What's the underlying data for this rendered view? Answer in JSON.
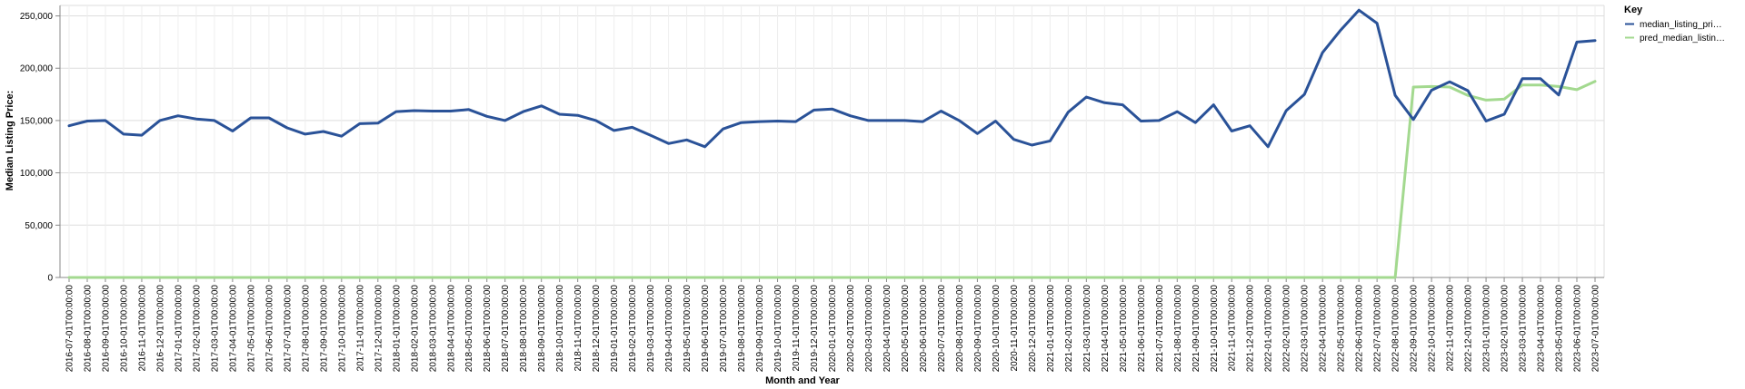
{
  "chart_data": {
    "type": "line",
    "xlabel": "Month and Year",
    "ylabel": "Median Listing Price:",
    "ylim": [
      0,
      260000
    ],
    "y_ticks": [
      0,
      50000,
      100000,
      150000,
      200000,
      250000
    ],
    "y_tick_labels": [
      "0",
      "50,000",
      "100,000",
      "150,000",
      "200,000",
      "250,000"
    ],
    "grid": true,
    "legend": {
      "title": "Key",
      "position": "top-right",
      "entries": [
        {
          "label": "median_listing_pri…",
          "color": "#2a5298"
        },
        {
          "label": "pred_median_listin…",
          "color": "#a3d98f"
        }
      ]
    },
    "categories": [
      "2016-07-01T00:00:00",
      "2016-08-01T00:00:00",
      "2016-09-01T00:00:00",
      "2016-10-01T00:00:00",
      "2016-11-01T00:00:00",
      "2016-12-01T00:00:00",
      "2017-01-01T00:00:00",
      "2017-02-01T00:00:00",
      "2017-03-01T00:00:00",
      "2017-04-01T00:00:00",
      "2017-05-01T00:00:00",
      "2017-06-01T00:00:00",
      "2017-07-01T00:00:00",
      "2017-08-01T00:00:00",
      "2017-09-01T00:00:00",
      "2017-10-01T00:00:00",
      "2017-11-01T00:00:00",
      "2017-12-01T00:00:00",
      "2018-01-01T00:00:00",
      "2018-02-01T00:00:00",
      "2018-03-01T00:00:00",
      "2018-04-01T00:00:00",
      "2018-05-01T00:00:00",
      "2018-06-01T00:00:00",
      "2018-07-01T00:00:00",
      "2018-08-01T00:00:00",
      "2018-09-01T00:00:00",
      "2018-10-01T00:00:00",
      "2018-11-01T00:00:00",
      "2018-12-01T00:00:00",
      "2019-01-01T00:00:00",
      "2019-02-01T00:00:00",
      "2019-03-01T00:00:00",
      "2019-04-01T00:00:00",
      "2019-05-01T00:00:00",
      "2019-06-01T00:00:00",
      "2019-07-01T00:00:00",
      "2019-08-01T00:00:00",
      "2019-09-01T00:00:00",
      "2019-10-01T00:00:00",
      "2019-11-01T00:00:00",
      "2019-12-01T00:00:00",
      "2020-01-01T00:00:00",
      "2020-02-01T00:00:00",
      "2020-03-01T00:00:00",
      "2020-04-01T00:00:00",
      "2020-05-01T00:00:00",
      "2020-06-01T00:00:00",
      "2020-07-01T00:00:00",
      "2020-08-01T00:00:00",
      "2020-09-01T00:00:00",
      "2020-10-01T00:00:00",
      "2020-11-01T00:00:00",
      "2020-12-01T00:00:00",
      "2021-01-01T00:00:00",
      "2021-02-01T00:00:00",
      "2021-03-01T00:00:00",
      "2021-04-01T00:00:00",
      "2021-05-01T00:00:00",
      "2021-06-01T00:00:00",
      "2021-07-01T00:00:00",
      "2021-08-01T00:00:00",
      "2021-09-01T00:00:00",
      "2021-10-01T00:00:00",
      "2021-11-01T00:00:00",
      "2021-12-01T00:00:00",
      "2022-01-01T00:00:00",
      "2022-02-01T00:00:00",
      "2022-03-01T00:00:00",
      "2022-04-01T00:00:00",
      "2022-05-01T00:00:00",
      "2022-06-01T00:00:00",
      "2022-07-01T00:00:00",
      "2022-08-01T00:00:00",
      "2022-09-01T00:00:00",
      "2022-10-01T00:00:00",
      "2022-11-01T00:00:00",
      "2022-12-01T00:00:00",
      "2023-01-01T00:00:00",
      "2023-02-01T00:00:00",
      "2023-03-01T00:00:00",
      "2023-04-01T00:00:00",
      "2023-05-01T00:00:00",
      "2023-06-01T00:00:00",
      "2023-07-01T00:00:00"
    ],
    "series": [
      {
        "name": "median_listing_pri…",
        "color": "#2a5298",
        "values": [
          145000,
          149500,
          150000,
          137000,
          136000,
          150000,
          154500,
          151500,
          150000,
          140000,
          152500,
          152500,
          143000,
          137000,
          139500,
          135000,
          147000,
          147500,
          158500,
          159500,
          159000,
          159000,
          160500,
          154000,
          150000,
          158500,
          164000,
          156000,
          155000,
          150000,
          140500,
          143500,
          136000,
          128000,
          131500,
          125000,
          142000,
          148000,
          149000,
          149500,
          149000,
          160000,
          161000,
          154500,
          150000,
          150000,
          150000,
          149000,
          159000,
          150000,
          137500,
          149500,
          132000,
          126500,
          130500,
          158000,
          172500,
          167000,
          165000,
          149500,
          150000,
          158500,
          148000,
          165000,
          140000,
          145000,
          125000,
          159500,
          175000,
          215000,
          236500,
          255500,
          243000,
          174000,
          151000,
          179000,
          187000,
          178500,
          149500,
          156000,
          190000,
          190000,
          174500,
          225000,
          226500
        ]
      },
      {
        "name": "pred_median_listin…",
        "color": "#a3d98f",
        "values": [
          0,
          0,
          0,
          0,
          0,
          0,
          0,
          0,
          0,
          0,
          0,
          0,
          0,
          0,
          0,
          0,
          0,
          0,
          0,
          0,
          0,
          0,
          0,
          0,
          0,
          0,
          0,
          0,
          0,
          0,
          0,
          0,
          0,
          0,
          0,
          0,
          0,
          0,
          0,
          0,
          0,
          0,
          0,
          0,
          0,
          0,
          0,
          0,
          0,
          0,
          0,
          0,
          0,
          0,
          0,
          0,
          0,
          0,
          0,
          0,
          0,
          0,
          0,
          0,
          0,
          0,
          0,
          0,
          0,
          0,
          0,
          0,
          0,
          0,
          182000,
          182500,
          182000,
          174000,
          169500,
          170500,
          184000,
          184000,
          182500,
          179500,
          187500
        ]
      }
    ]
  }
}
